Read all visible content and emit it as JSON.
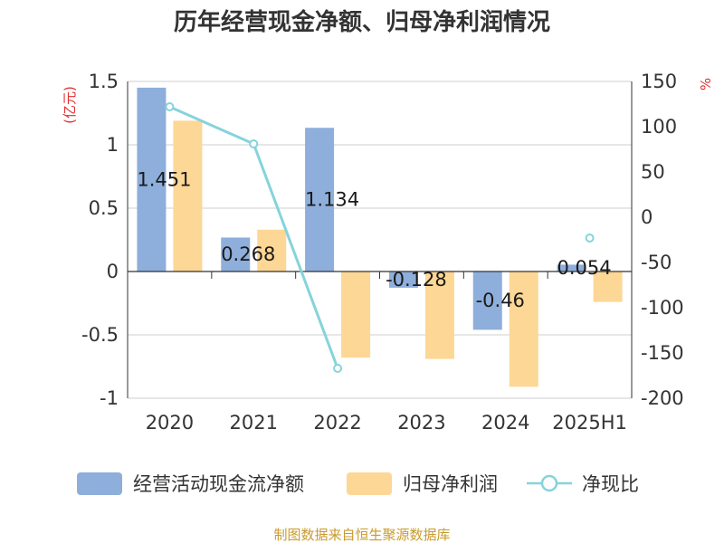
{
  "chart_data": {
    "type": "bar",
    "title": "历年经营现金净额、归母净利润情况",
    "left_unit": "(亿元)",
    "right_unit": "%",
    "categories": [
      "2020",
      "2021",
      "2022",
      "2023",
      "2024",
      "2025H1"
    ],
    "ylim_left": [
      -1,
      1.5
    ],
    "yticks_left": [
      "1.5",
      "1",
      "0.5",
      "0",
      "-0.5",
      "-1"
    ],
    "ylim_right": [
      -200,
      150
    ],
    "yticks_right": [
      "150",
      "100",
      "50",
      "0",
      "-50",
      "-100",
      "-150",
      "-200"
    ],
    "grid": true,
    "legend_position": "bottom",
    "series": [
      {
        "name": "经营活动现金流净额",
        "kind": "bar",
        "axis": "left",
        "color": "#8eaedb",
        "values": [
          1.451,
          0.268,
          1.134,
          -0.128,
          -0.46,
          0.054
        ],
        "labels": [
          "1.451",
          "0.268",
          "1.134",
          "-0.128",
          "-0.46",
          "0.054"
        ]
      },
      {
        "name": "归母净利润",
        "kind": "bar",
        "axis": "left",
        "color": "#fdd795",
        "values": [
          1.19,
          0.33,
          -0.68,
          -0.69,
          -0.91,
          -0.24
        ]
      },
      {
        "name": "净现比",
        "kind": "line",
        "axis": "right",
        "color": "#86d3dc",
        "values": [
          122,
          81,
          -167,
          null,
          null,
          -23
        ]
      }
    ]
  },
  "source": "制图数据来自恒生聚源数据库"
}
